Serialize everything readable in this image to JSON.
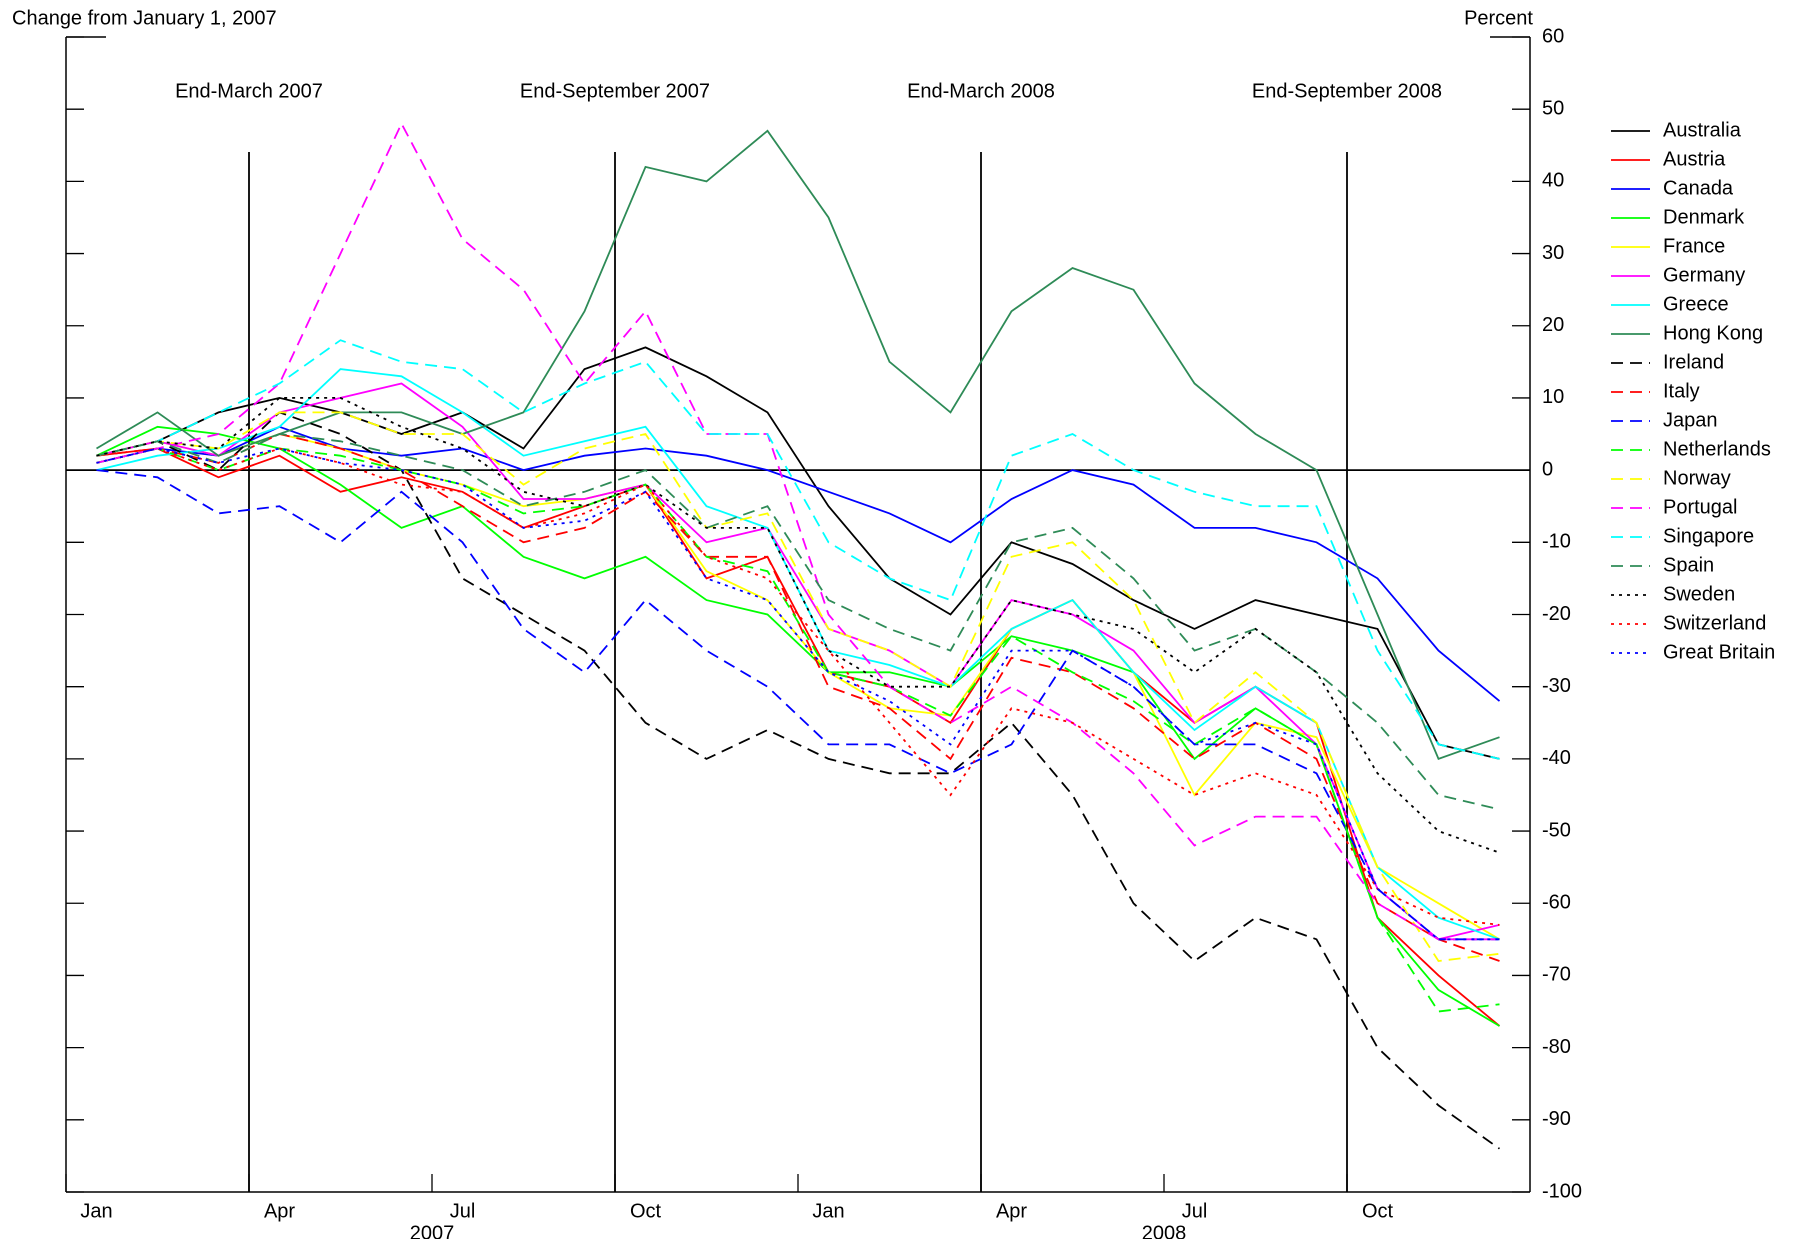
{
  "chart_data": {
    "type": "line",
    "y_label": "Change from January 1, 2007",
    "y_unit_label": "Percent",
    "x": [
      "2007-01",
      "2007-02",
      "2007-03",
      "2007-04",
      "2007-05",
      "2007-06",
      "2007-07",
      "2007-08",
      "2007-09",
      "2007-10",
      "2007-11",
      "2007-12",
      "2008-01",
      "2008-02",
      "2008-03",
      "2008-04",
      "2008-05",
      "2008-06",
      "2008-07",
      "2008-08",
      "2008-09",
      "2008-10",
      "2008-11",
      "2008-12"
    ],
    "xlim": [
      "2007-01",
      "2008-12"
    ],
    "xticks": [
      {
        "value": "2007-01",
        "label": "Jan"
      },
      {
        "value": "2007-04",
        "label": "Apr"
      },
      {
        "value": "2007-07",
        "label": "Jul"
      },
      {
        "value": "2007-10",
        "label": "Oct"
      },
      {
        "value": "2008-01",
        "label": "Jan"
      },
      {
        "value": "2008-04",
        "label": "Apr"
      },
      {
        "value": "2008-07",
        "label": "Jul"
      },
      {
        "value": "2008-10",
        "label": "Oct"
      }
    ],
    "year_labels": [
      "2007",
      "2008"
    ],
    "ylim": [
      -100,
      60
    ],
    "yticks": [
      -100,
      -90,
      -80,
      -70,
      -60,
      -50,
      -40,
      -30,
      -20,
      -10,
      0,
      10,
      20,
      30,
      40,
      50,
      60
    ],
    "annotations": [
      {
        "x": "2007-03",
        "label": "End-March 2007"
      },
      {
        "x": "2007-09",
        "label": "End-September 2007"
      },
      {
        "x": "2008-03",
        "label": "End-March 2008"
      },
      {
        "x": "2008-09",
        "label": "End-September 2008"
      }
    ],
    "legend": "right",
    "series": [
      {
        "name": "Australia",
        "color": "#000000",
        "dash": "solid",
        "values": [
          2,
          4,
          8,
          10,
          8,
          5,
          8,
          3,
          14,
          17,
          13,
          8,
          -5,
          -15,
          -20,
          -10,
          -13,
          -18,
          -22,
          -18,
          -20,
          -22,
          -38,
          -40
        ]
      },
      {
        "name": "Austria",
        "color": "#ff0000",
        "dash": "solid",
        "values": [
          2,
          3,
          -1,
          2,
          -3,
          -1,
          -3,
          -8,
          -5,
          -2,
          -15,
          -12,
          -28,
          -30,
          -35,
          -22,
          -18,
          -28,
          -35,
          -30,
          -35,
          -62,
          -70,
          -77
        ]
      },
      {
        "name": "Canada",
        "color": "#0000ff",
        "dash": "solid",
        "values": [
          1,
          3,
          2,
          6,
          3,
          2,
          3,
          0,
          2,
          3,
          2,
          0,
          -3,
          -6,
          -10,
          -4,
          0,
          -2,
          -8,
          -8,
          -10,
          -15,
          -25,
          -32
        ]
      },
      {
        "name": "Denmark",
        "color": "#00ff00",
        "dash": "solid",
        "values": [
          2,
          6,
          5,
          3,
          -2,
          -8,
          -5,
          -12,
          -15,
          -12,
          -18,
          -20,
          -28,
          -28,
          -30,
          -23,
          -25,
          -28,
          -40,
          -33,
          -38,
          -62,
          -72,
          -77
        ]
      },
      {
        "name": "France",
        "color": "#ffff00",
        "dash": "solid",
        "values": [
          2,
          4,
          2,
          5,
          3,
          0,
          -2,
          -5,
          -4,
          -2,
          -14,
          -18,
          -28,
          -33,
          -34,
          -22,
          -18,
          -28,
          -45,
          -35,
          -37,
          -55,
          -60,
          -65
        ]
      },
      {
        "name": "Germany",
        "color": "#ff00ff",
        "dash": "solid",
        "values": [
          2,
          4,
          2,
          8,
          10,
          12,
          6,
          -4,
          -4,
          -2,
          -10,
          -8,
          -22,
          -25,
          -30,
          -18,
          -20,
          -25,
          -35,
          -30,
          -38,
          -58,
          -65,
          -63
        ]
      },
      {
        "name": "Greece",
        "color": "#00ffff",
        "dash": "solid",
        "values": [
          0,
          2,
          3,
          6,
          14,
          13,
          8,
          2,
          4,
          6,
          -5,
          -8,
          -25,
          -27,
          -30,
          -22,
          -18,
          -28,
          -36,
          -30,
          -35,
          -55,
          -62,
          -65
        ]
      },
      {
        "name": "Hong Kong",
        "color": "#2e8b57",
        "dash": "solid",
        "values": [
          3,
          8,
          2,
          5,
          8,
          8,
          5,
          8,
          22,
          42,
          40,
          47,
          35,
          15,
          8,
          22,
          28,
          25,
          12,
          5,
          0,
          -20,
          -40,
          -37
        ]
      },
      {
        "name": "Ireland",
        "color": "#000000",
        "dash": "dashed",
        "values": [
          2,
          4,
          0,
          8,
          5,
          0,
          -15,
          -20,
          -25,
          -35,
          -40,
          -36,
          -40,
          -42,
          -42,
          -35,
          -45,
          -60,
          -68,
          -62,
          -65,
          -80,
          -88,
          -94
        ]
      },
      {
        "name": "Italy",
        "color": "#ff0000",
        "dash": "dashed",
        "values": [
          2,
          3,
          1,
          5,
          3,
          0,
          -5,
          -10,
          -8,
          -3,
          -12,
          -12,
          -30,
          -33,
          -40,
          -26,
          -28,
          -33,
          -40,
          -35,
          -40,
          -60,
          -65,
          -68
        ]
      },
      {
        "name": "Japan",
        "color": "#0000ff",
        "dash": "dashed",
        "values": [
          0,
          -1,
          -6,
          -5,
          -10,
          -3,
          -10,
          -22,
          -28,
          -18,
          -25,
          -30,
          -38,
          -38,
          -42,
          -38,
          -25,
          -30,
          -38,
          -38,
          -42,
          -58,
          -65,
          -65
        ]
      },
      {
        "name": "Netherlands",
        "color": "#00ff00",
        "dash": "dashed",
        "values": [
          1,
          3,
          0,
          3,
          2,
          0,
          -2,
          -6,
          -5,
          -2,
          -12,
          -14,
          -28,
          -30,
          -34,
          -23,
          -28,
          -32,
          -38,
          -33,
          -38,
          -62,
          -75,
          -74
        ]
      },
      {
        "name": "Norway",
        "color": "#ffff00",
        "dash": "dashed",
        "values": [
          2,
          4,
          3,
          8,
          8,
          5,
          5,
          -2,
          3,
          5,
          -8,
          -6,
          -22,
          -25,
          -30,
          -12,
          -10,
          -18,
          -35,
          -28,
          -35,
          -55,
          -68,
          -67
        ]
      },
      {
        "name": "Portugal",
        "color": "#ff00ff",
        "dash": "dashed",
        "values": [
          1,
          3,
          5,
          12,
          30,
          48,
          32,
          25,
          12,
          22,
          5,
          5,
          -20,
          -30,
          -35,
          -30,
          -35,
          -42,
          -52,
          -48,
          -48,
          -60,
          -65,
          -65
        ]
      },
      {
        "name": "Singapore",
        "color": "#00ffff",
        "dash": "dashed",
        "values": [
          2,
          4,
          8,
          12,
          18,
          15,
          14,
          8,
          12,
          15,
          5,
          5,
          -10,
          -15,
          -18,
          2,
          5,
          0,
          -3,
          -5,
          -5,
          -25,
          -38,
          -40
        ]
      },
      {
        "name": "Spain",
        "color": "#2e8b57",
        "dash": "dashed",
        "values": [
          2,
          4,
          1,
          5,
          4,
          2,
          0,
          -5,
          -3,
          0,
          -8,
          -5,
          -18,
          -22,
          -25,
          -10,
          -8,
          -15,
          -25,
          -22,
          -28,
          -35,
          -45,
          -47
        ]
      },
      {
        "name": "Sweden",
        "color": "#000000",
        "dash": "dotted",
        "values": [
          2,
          4,
          3,
          10,
          10,
          6,
          3,
          -3,
          -5,
          -2,
          -8,
          -8,
          -25,
          -30,
          -30,
          -18,
          -20,
          -22,
          -28,
          -22,
          -28,
          -42,
          -50,
          -53
        ]
      },
      {
        "name": "Switzerland",
        "color": "#ff0000",
        "dash": "dotted",
        "values": [
          1,
          3,
          0,
          3,
          1,
          -2,
          -3,
          -8,
          -6,
          -2,
          -12,
          -15,
          -25,
          -35,
          -45,
          -33,
          -35,
          -40,
          -45,
          -42,
          -45,
          -58,
          -62,
          -63
        ]
      },
      {
        "name": "Great Britain",
        "color": "#0000ff",
        "dash": "dotted",
        "values": [
          1,
          3,
          1,
          3,
          1,
          0,
          -2,
          -8,
          -7,
          -3,
          -15,
          -18,
          -28,
          -32,
          -38,
          -25,
          -25,
          -30,
          -38,
          -35,
          -38,
          -58,
          -65,
          -65
        ]
      }
    ]
  }
}
